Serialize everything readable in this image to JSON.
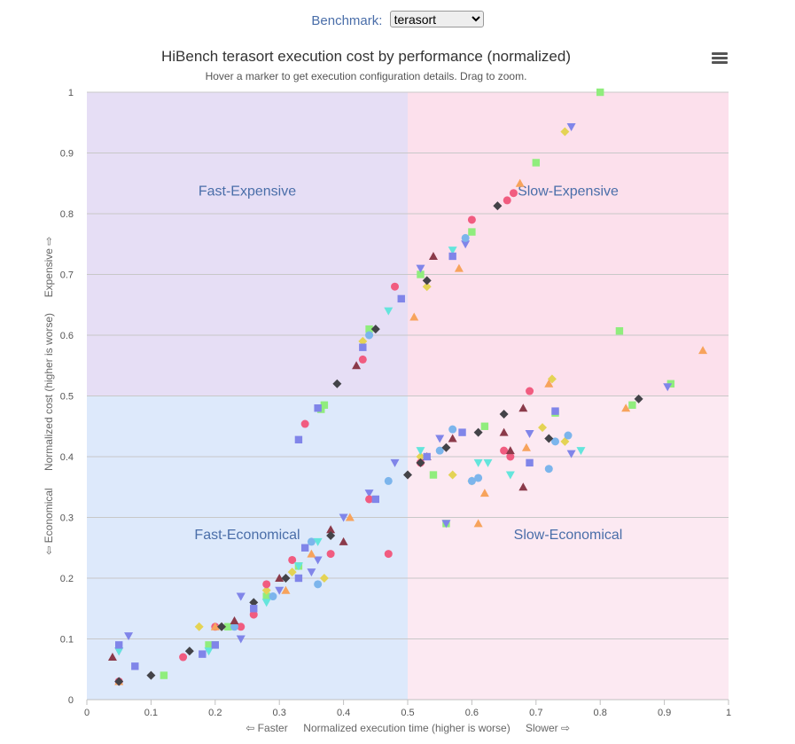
{
  "selector": {
    "label": "Benchmark:",
    "selected": "terasort"
  },
  "chart_data": {
    "type": "scatter",
    "title": "HiBench terasort execution cost by performance (normalized)",
    "subtitle": "Hover a marker to get execution configuration details. Drag to zoom.",
    "xlabel": "Normalized execution time (higher is worse)",
    "xlabel_left": "⇦ Faster",
    "xlabel_right": "Slower ⇨",
    "ylabel": "Normalized cost (higher is worse)",
    "ylabel_bottom": "⇦ Economical",
    "ylabel_top": "Expensive ⇨",
    "xlim": [
      0,
      1
    ],
    "ylim": [
      0,
      1
    ],
    "xticks": [
      "0",
      "0.1",
      "0.2",
      "0.3",
      "0.4",
      "0.5",
      "0.6",
      "0.7",
      "0.8",
      "0.9",
      "1"
    ],
    "yticks": [
      "0",
      "0.1",
      "0.2",
      "0.3",
      "0.4",
      "0.5",
      "0.6",
      "0.7",
      "0.8",
      "0.9",
      "1"
    ],
    "grid": true,
    "quadrants": [
      {
        "label": "Fast-Expensive",
        "x": [
          0,
          0.5
        ],
        "y": [
          0.5,
          1
        ],
        "color": "#e6def5"
      },
      {
        "label": "Slow-Expensive",
        "x": [
          0.5,
          1
        ],
        "y": [
          0.5,
          1
        ],
        "color": "#fce0ec"
      },
      {
        "label": "Fast-Economical",
        "x": [
          0,
          0.5
        ],
        "y": [
          0,
          0.5
        ],
        "color": "#dde9fb"
      },
      {
        "label": "Slow-Economical",
        "x": [
          0.5,
          1
        ],
        "y": [
          0,
          0.5
        ],
        "color": "#fce9f2"
      }
    ],
    "series": [
      {
        "marker": "square",
        "color": "#90ed7d",
        "points": [
          [
            0.8,
            1.0
          ],
          [
            0.7,
            0.884
          ],
          [
            0.83,
            0.607
          ],
          [
            0.91,
            0.52
          ],
          [
            0.85,
            0.485
          ],
          [
            0.73,
            0.472
          ],
          [
            0.56,
            0.29
          ],
          [
            0.37,
            0.485
          ],
          [
            0.365,
            0.478
          ],
          [
            0.12,
            0.04
          ],
          [
            0.2,
            0.09
          ],
          [
            0.19,
            0.09
          ],
          [
            0.6,
            0.77
          ],
          [
            0.52,
            0.7
          ],
          [
            0.44,
            0.61
          ],
          [
            0.54,
            0.37
          ],
          [
            0.62,
            0.45
          ],
          [
            0.22,
            0.12
          ],
          [
            0.33,
            0.22
          ],
          [
            0.28,
            0.17
          ]
        ]
      },
      {
        "marker": "triangle-down",
        "color": "#8085e9",
        "points": [
          [
            0.755,
            0.943
          ],
          [
            0.905,
            0.515
          ],
          [
            0.755,
            0.405
          ],
          [
            0.69,
            0.438
          ],
          [
            0.56,
            0.29
          ],
          [
            0.065,
            0.105
          ],
          [
            0.24,
            0.1
          ],
          [
            0.24,
            0.17
          ],
          [
            0.3,
            0.18
          ],
          [
            0.36,
            0.23
          ],
          [
            0.4,
            0.3
          ],
          [
            0.44,
            0.34
          ],
          [
            0.48,
            0.39
          ],
          [
            0.55,
            0.43
          ],
          [
            0.59,
            0.75
          ],
          [
            0.52,
            0.71
          ],
          [
            0.35,
            0.21
          ],
          [
            0.24,
            0.17
          ],
          [
            0.05,
            0.08
          ]
        ]
      },
      {
        "marker": "diamond",
        "color": "#e4d354",
        "points": [
          [
            0.745,
            0.935
          ],
          [
            0.725,
            0.528
          ],
          [
            0.71,
            0.448
          ],
          [
            0.745,
            0.425
          ],
          [
            0.6,
            0.36
          ],
          [
            0.37,
            0.2
          ],
          [
            0.175,
            0.12
          ],
          [
            0.21,
            0.12
          ],
          [
            0.28,
            0.18
          ],
          [
            0.32,
            0.21
          ],
          [
            0.52,
            0.4
          ],
          [
            0.43,
            0.59
          ],
          [
            0.53,
            0.68
          ],
          [
            0.57,
            0.37
          ]
        ]
      },
      {
        "marker": "circle",
        "color": "#f15c80",
        "points": [
          [
            0.665,
            0.834
          ],
          [
            0.655,
            0.822
          ],
          [
            0.69,
            0.508
          ],
          [
            0.65,
            0.41
          ],
          [
            0.34,
            0.454
          ],
          [
            0.32,
            0.23
          ],
          [
            0.38,
            0.24
          ],
          [
            0.47,
            0.24
          ],
          [
            0.66,
            0.4
          ],
          [
            0.52,
            0.39
          ],
          [
            0.44,
            0.33
          ],
          [
            0.28,
            0.19
          ],
          [
            0.26,
            0.14
          ],
          [
            0.2,
            0.12
          ],
          [
            0.24,
            0.12
          ],
          [
            0.15,
            0.07
          ],
          [
            0.05,
            0.03
          ],
          [
            0.6,
            0.79
          ],
          [
            0.48,
            0.68
          ],
          [
            0.43,
            0.56
          ]
        ]
      },
      {
        "marker": "triangle",
        "color": "#f7a35c",
        "points": [
          [
            0.675,
            0.85
          ],
          [
            0.96,
            0.575
          ],
          [
            0.72,
            0.52
          ],
          [
            0.84,
            0.48
          ],
          [
            0.685,
            0.415
          ],
          [
            0.61,
            0.29
          ],
          [
            0.62,
            0.34
          ],
          [
            0.35,
            0.24
          ],
          [
            0.41,
            0.3
          ],
          [
            0.58,
            0.71
          ],
          [
            0.51,
            0.63
          ],
          [
            0.31,
            0.18
          ],
          [
            0.2,
            0.12
          ],
          [
            0.05,
            0.03
          ]
        ]
      },
      {
        "marker": "circle",
        "color": "#7cb5ec",
        "points": [
          [
            0.75,
            0.435
          ],
          [
            0.73,
            0.425
          ],
          [
            0.72,
            0.38
          ],
          [
            0.6,
            0.36
          ],
          [
            0.61,
            0.365
          ],
          [
            0.35,
            0.26
          ],
          [
            0.36,
            0.19
          ],
          [
            0.47,
            0.36
          ],
          [
            0.55,
            0.41
          ],
          [
            0.57,
            0.445
          ],
          [
            0.44,
            0.6
          ],
          [
            0.59,
            0.76
          ],
          [
            0.29,
            0.17
          ],
          [
            0.23,
            0.12
          ]
        ]
      },
      {
        "marker": "triangle-down",
        "color": "#64e5dc",
        "points": [
          [
            0.77,
            0.41
          ],
          [
            0.625,
            0.39
          ],
          [
            0.66,
            0.37
          ],
          [
            0.61,
            0.39
          ],
          [
            0.36,
            0.26
          ],
          [
            0.33,
            0.22
          ],
          [
            0.28,
            0.16
          ],
          [
            0.19,
            0.08
          ],
          [
            0.52,
            0.41
          ],
          [
            0.47,
            0.64
          ],
          [
            0.57,
            0.74
          ],
          [
            0.05,
            0.08
          ]
        ]
      },
      {
        "marker": "triangle",
        "color": "#8b3a4a",
        "points": [
          [
            0.68,
            0.48
          ],
          [
            0.66,
            0.41
          ],
          [
            0.68,
            0.35
          ],
          [
            0.38,
            0.28
          ],
          [
            0.4,
            0.26
          ],
          [
            0.53,
            0.4
          ],
          [
            0.57,
            0.43
          ],
          [
            0.65,
            0.44
          ],
          [
            0.54,
            0.73
          ],
          [
            0.42,
            0.55
          ],
          [
            0.3,
            0.2
          ],
          [
            0.23,
            0.13
          ],
          [
            0.04,
            0.07
          ]
        ]
      },
      {
        "marker": "diamond",
        "color": "#434348",
        "points": [
          [
            0.86,
            0.495
          ],
          [
            0.72,
            0.43
          ],
          [
            0.61,
            0.44
          ],
          [
            0.56,
            0.415
          ],
          [
            0.65,
            0.47
          ],
          [
            0.52,
            0.39
          ],
          [
            0.5,
            0.37
          ],
          [
            0.38,
            0.27
          ],
          [
            0.31,
            0.2
          ],
          [
            0.26,
            0.16
          ],
          [
            0.21,
            0.12
          ],
          [
            0.16,
            0.08
          ],
          [
            0.1,
            0.04
          ],
          [
            0.64,
            0.813
          ],
          [
            0.53,
            0.69
          ],
          [
            0.45,
            0.61
          ],
          [
            0.39,
            0.52
          ],
          [
            0.05,
            0.03
          ]
        ]
      },
      {
        "marker": "square",
        "color": "#8085e9",
        "points": [
          [
            0.73,
            0.475
          ],
          [
            0.69,
            0.39
          ],
          [
            0.585,
            0.44
          ],
          [
            0.53,
            0.4
          ],
          [
            0.45,
            0.33
          ],
          [
            0.34,
            0.25
          ],
          [
            0.33,
            0.2
          ],
          [
            0.26,
            0.15
          ],
          [
            0.18,
            0.075
          ],
          [
            0.075,
            0.055
          ],
          [
            0.33,
            0.428
          ],
          [
            0.36,
            0.48
          ],
          [
            0.57,
            0.73
          ],
          [
            0.49,
            0.66
          ],
          [
            0.43,
            0.58
          ],
          [
            0.05,
            0.09
          ],
          [
            0.2,
            0.09
          ]
        ]
      }
    ]
  }
}
